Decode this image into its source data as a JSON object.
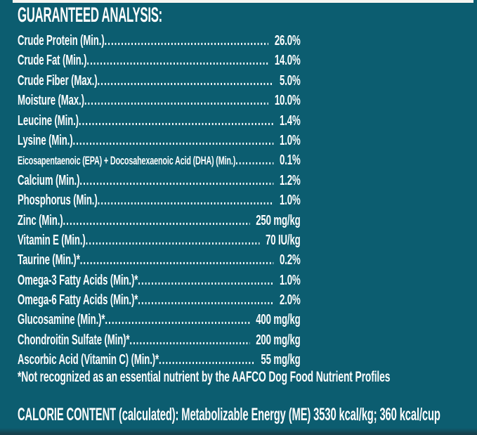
{
  "theme": {
    "background_color": "#0c5d70",
    "text_color": "#fdfdfd",
    "top_strip_color": "#f7f5f1",
    "bottom_shade_color": "#16404d"
  },
  "header": {
    "title": "GUARANTEED ANALYSIS:"
  },
  "analysis": {
    "rows": [
      {
        "label": "Crude Protein (Min.)",
        "value": "26.0%"
      },
      {
        "label": "Crude Fat (Min.)",
        "value": "14.0%"
      },
      {
        "label": "Crude Fiber (Max.)",
        "value": "5.0%"
      },
      {
        "label": "Moisture (Max.)",
        "value": "10.0%"
      },
      {
        "label": "Leucine (Min.)",
        "value": "1.4%"
      },
      {
        "label": "Lysine (Min.)",
        "value": "1.0%"
      },
      {
        "label": "Eicosapentaenoic (EPA) + Docosahexaenoic Acid (DHA) (Min.)",
        "value": "0.1%"
      },
      {
        "label": "Calcium (Min.)",
        "value": "1.2%"
      },
      {
        "label": "Phosphorus (Min.)",
        "value": "1.0%"
      },
      {
        "label": "Zinc (Min.)",
        "value": "250 mg/kg"
      },
      {
        "label": "Vitamin E (Min.)",
        "value": "70 IU/kg"
      },
      {
        "label": "Taurine (Min.)*",
        "value": "0.2%"
      },
      {
        "label": "Omega-3 Fatty Acids (Min.)*",
        "value": "1.0%"
      },
      {
        "label": "Omega-6 Fatty Acids (Min.)*",
        "value": "2.0%"
      },
      {
        "label": "Glucosamine (Min.)*",
        "value": "400 mg/kg"
      },
      {
        "label": "Chondroitin Sulfate (Min)*",
        "value": "200 mg/kg"
      },
      {
        "label": "Ascorbic Acid (Vitamin C) (Min.)*",
        "value": "55 mg/kg"
      }
    ],
    "footnote": "*Not recognized as an essential nutrient by the AAFCO Dog Food Nutrient Profiles"
  },
  "calorie_content": {
    "text": "CALORIE CONTENT (calculated): Metabolizable Energy (ME) 3530 kcal/kg; 360 kcal/cup"
  }
}
